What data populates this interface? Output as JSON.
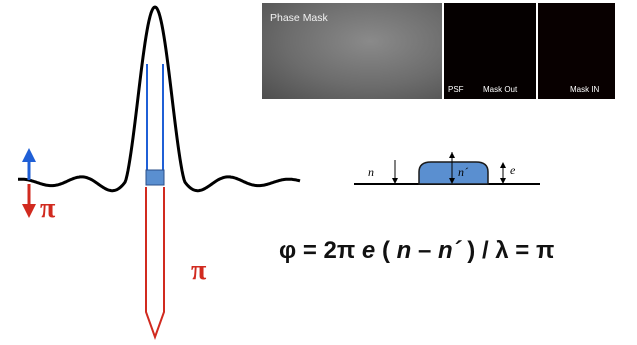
{
  "photos": {
    "phase_mask_caption": "Phase Mask",
    "psf_label": "PSF",
    "mask_out_label": "Mask Out",
    "mask_in_label": "Mask IN"
  },
  "wave_labels": {
    "pi_left": "π",
    "pi_tube": "π"
  },
  "plate": {
    "n_outside": "n",
    "n_inside": "n´",
    "thickness": "e"
  },
  "equation": {
    "phi": "φ = 2π",
    "e": "e",
    "open": " ( ",
    "n": "n",
    "minus": " – ",
    "n_prime": "n´",
    "rest": " ) / λ = π"
  },
  "colors": {
    "wave": "#000000",
    "blue": "#1f5fd6",
    "red": "#d12a1f",
    "plate_fill": "#5a8fd0"
  }
}
